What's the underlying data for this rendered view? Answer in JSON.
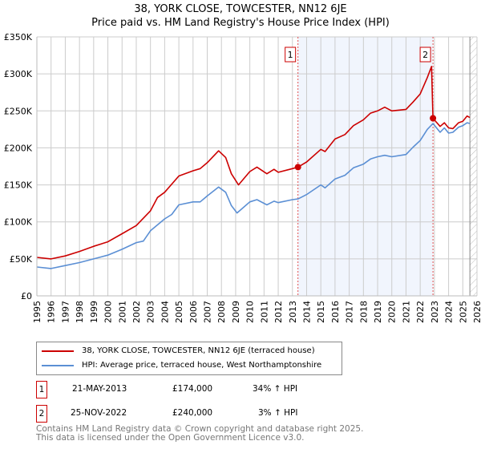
{
  "chart_data": {
    "type": "line",
    "title": "38, YORK CLOSE, TOWCESTER, NN12 6JE",
    "subtitle": "Price paid vs. HM Land Registry's House Price Index (HPI)",
    "xlim": [
      1995,
      2026
    ],
    "ylim": [
      0,
      350000
    ],
    "yticks": [
      {
        "v": 0,
        "label": "£0"
      },
      {
        "v": 50000,
        "label": "£50K"
      },
      {
        "v": 100000,
        "label": "£100K"
      },
      {
        "v": 150000,
        "label": "£150K"
      },
      {
        "v": 200000,
        "label": "£200K"
      },
      {
        "v": 250000,
        "label": "£250K"
      },
      {
        "v": 300000,
        "label": "£300K"
      },
      {
        "v": 350000,
        "label": "£350K"
      }
    ],
    "xticks": [
      "1995",
      "1996",
      "1997",
      "1998",
      "1999",
      "2000",
      "2001",
      "2002",
      "2003",
      "2004",
      "2005",
      "2006",
      "2007",
      "2008",
      "2009",
      "2010",
      "2011",
      "2012",
      "2013",
      "2014",
      "2015",
      "2016",
      "2017",
      "2018",
      "2019",
      "2020",
      "2021",
      "2022",
      "2023",
      "2024",
      "2025",
      "2026"
    ],
    "grid": true,
    "shaded_range": [
      2013.39,
      2022.9
    ],
    "hatched_from": 2025.5,
    "series": [
      {
        "name": "38, YORK CLOSE, TOWCESTER, NN12 6JE (terraced house)",
        "color": "#cc0000",
        "x": [
          1995,
          1996,
          1997,
          1998,
          1999,
          2000,
          2001,
          2002,
          2003,
          2003.5,
          2004,
          2005,
          2006,
          2006.5,
          2007,
          2007.8,
          2008.3,
          2008.7,
          2009.2,
          2010,
          2010.5,
          2011.2,
          2011.7,
          2012,
          2013,
          2013.39,
          2014,
          2015,
          2015.3,
          2016,
          2016.7,
          2017.3,
          2018,
          2018.5,
          2019,
          2019.5,
          2020,
          2021,
          2021.5,
          2022,
          2022.5,
          2022.8,
          2022.9,
          2023.4,
          2023.7,
          2024,
          2024.3,
          2024.7,
          2025,
          2025.3,
          2025.5
        ],
        "y": [
          52,
          50,
          54,
          60,
          67,
          73,
          84,
          95,
          115,
          133,
          140,
          162,
          169,
          172,
          180,
          196,
          187,
          165,
          150,
          168,
          174,
          165,
          171,
          167,
          172,
          174,
          181,
          198,
          195,
          212,
          218,
          230,
          238,
          247,
          250,
          255,
          250,
          252,
          262,
          273,
          295,
          310,
          240,
          229,
          234,
          227,
          226,
          234,
          236,
          243,
          241
        ]
      },
      {
        "name": "HPI: Average price, terraced house, West Northamptonshire",
        "color": "#5b8fd4",
        "x": [
          1995,
          1996,
          1997,
          1998,
          1999,
          2000,
          2001,
          2002,
          2002.5,
          2003,
          2004,
          2004.5,
          2005,
          2006,
          2006.5,
          2007,
          2007.8,
          2008.3,
          2008.7,
          2009.1,
          2010,
          2010.5,
          2011.2,
          2011.7,
          2012,
          2013,
          2013.4,
          2014,
          2015,
          2015.3,
          2016,
          2016.7,
          2017.3,
          2018,
          2018.5,
          2019,
          2019.5,
          2020,
          2021,
          2021.5,
          2022,
          2022.5,
          2022.9,
          2023.4,
          2023.7,
          2024,
          2024.3,
          2024.7,
          2025,
          2025.3,
          2025.5
        ],
        "y": [
          39,
          37,
          41,
          45,
          50,
          55,
          63,
          72,
          74,
          88,
          104,
          110,
          123,
          127,
          127,
          135,
          147,
          140,
          122,
          112,
          127,
          130,
          123,
          128,
          126,
          130,
          131,
          137,
          150,
          146,
          158,
          163,
          173,
          178,
          185,
          188,
          190,
          188,
          191,
          201,
          210,
          225,
          233,
          221,
          227,
          220,
          221,
          228,
          230,
          234,
          233
        ]
      }
    ],
    "y_units": "thousands GBP",
    "markers": [
      {
        "label": "1",
        "x": 2013.39,
        "y": 174
      },
      {
        "label": "2",
        "x": 2022.9,
        "y": 240
      }
    ]
  },
  "transactions": [
    {
      "num": "1",
      "date": "21-MAY-2013",
      "price": "£174,000",
      "hpi": "34% ↑ HPI"
    },
    {
      "num": "2",
      "date": "25-NOV-2022",
      "price": "£240,000",
      "hpi": "3% ↑ HPI"
    }
  ],
  "footer": {
    "line1": "Contains HM Land Registry data © Crown copyright and database right 2025.",
    "line2": "This data is licensed under the Open Government Licence v3.0."
  }
}
